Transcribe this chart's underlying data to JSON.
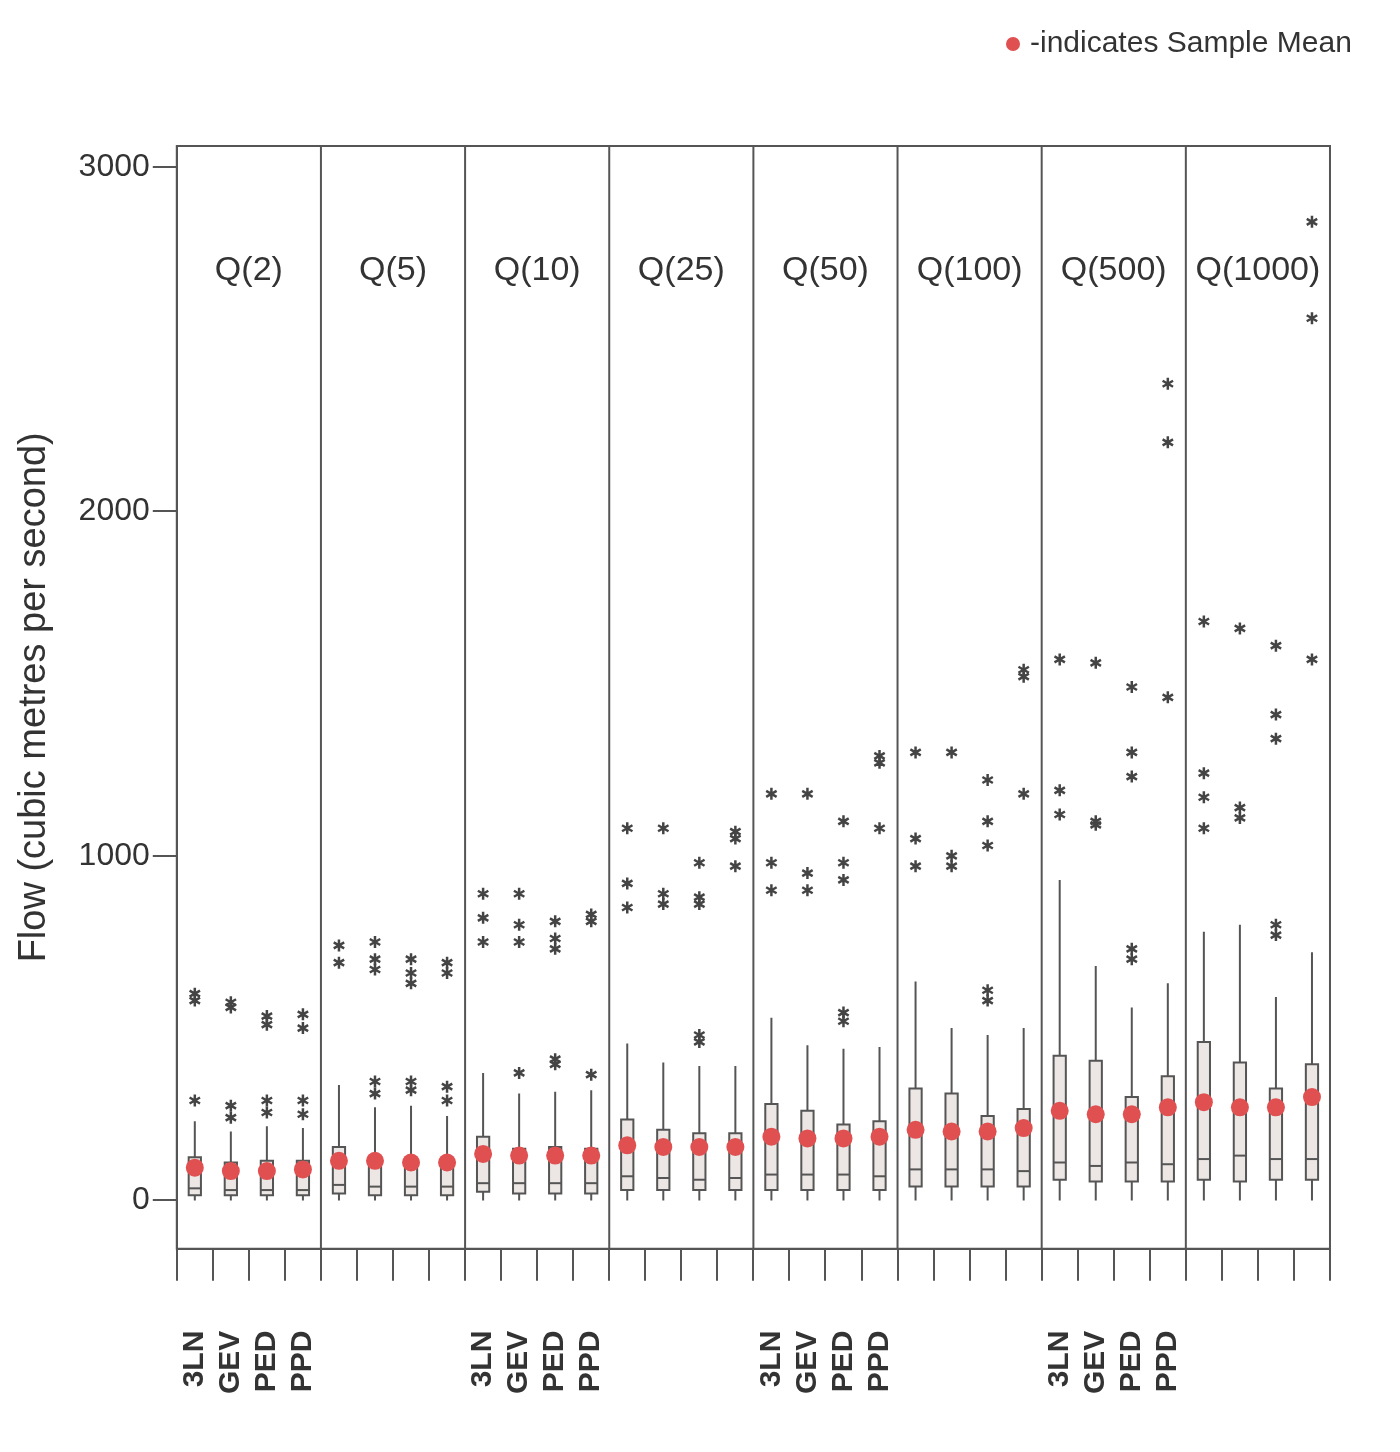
{
  "chart_data": {
    "type": "box",
    "ylabel": "Flow (cubic metres per second)",
    "categories": [
      "3LN",
      "GEV",
      "PED",
      "PPD",
      null,
      null,
      null,
      null,
      "3LN",
      "GEV",
      "PED",
      "PPD",
      null,
      null,
      null,
      null,
      "3LN",
      "GEV",
      "PED",
      "PPD",
      null,
      null,
      null,
      null,
      "3LN",
      "GEV",
      "PED",
      "PPD",
      null,
      null,
      null,
      null
    ],
    "ylim": [
      -140,
      3060
    ],
    "yticks": [
      0,
      1000,
      2000,
      3000
    ],
    "grid": false,
    "annotations": [
      "-indicates Sample Mean",
      "Q(2)",
      "Q(5)",
      "Q(10)",
      "Q(25)",
      "Q(50)",
      "Q(100)",
      "Q(500)",
      "Q(1000)"
    ],
    "series": [
      {
        "color": "#ece6e4",
        "boxes": [
          {
            "low": 0,
            "q1": 15,
            "median": 35,
            "q3": 125,
            "high": 230,
            "mean": 95,
            "outliers": [
              290,
              580,
              600
            ]
          },
          {
            "low": 0,
            "q1": 15,
            "median": 30,
            "q3": 110,
            "high": 200,
            "mean": 85,
            "outliers": [
              240,
              275,
              560,
              575
            ]
          },
          {
            "low": 0,
            "q1": 15,
            "median": 30,
            "q3": 115,
            "high": 215,
            "mean": 85,
            "outliers": [
              255,
              290,
              510,
              535
            ]
          },
          {
            "low": 0,
            "q1": 15,
            "median": 30,
            "q3": 115,
            "high": 210,
            "mean": 90,
            "outliers": [
              250,
              290,
              500,
              540
            ]
          },
          {
            "low": 0,
            "q1": 20,
            "median": 45,
            "q3": 155,
            "high": 335,
            "mean": 115,
            "outliers": [
              690,
              740
            ]
          },
          {
            "low": 0,
            "q1": 15,
            "median": 40,
            "q3": 120,
            "high": 270,
            "mean": 115,
            "outliers": [
              310,
              345,
              670,
              700,
              750
            ]
          },
          {
            "low": 0,
            "q1": 15,
            "median": 40,
            "q3": 120,
            "high": 275,
            "mean": 110,
            "outliers": [
              320,
              345,
              630,
              660,
              700
            ]
          },
          {
            "low": 0,
            "q1": 15,
            "median": 40,
            "q3": 115,
            "high": 245,
            "mean": 110,
            "outliers": [
              290,
              330,
              660,
              690
            ]
          },
          {
            "low": 0,
            "q1": 25,
            "median": 50,
            "q3": 185,
            "high": 370,
            "mean": 135,
            "outliers": [
              750,
              820,
              890
            ]
          },
          {
            "low": 0,
            "q1": 20,
            "median": 50,
            "q3": 150,
            "high": 310,
            "mean": 130,
            "outliers": [
              370,
              750,
              800,
              890
            ]
          },
          {
            "low": 0,
            "q1": 20,
            "median": 50,
            "q3": 155,
            "high": 315,
            "mean": 130,
            "outliers": [
              395,
              410,
              730,
              760,
              810
            ]
          },
          {
            "low": 0,
            "q1": 20,
            "median": 50,
            "q3": 150,
            "high": 320,
            "mean": 130,
            "outliers": [
              365,
              810,
              830
            ]
          },
          {
            "low": 0,
            "q1": 30,
            "median": 70,
            "q3": 235,
            "high": 455,
            "mean": 160,
            "outliers": [
              850,
              920,
              1080
            ]
          },
          {
            "low": 0,
            "q1": 30,
            "median": 65,
            "q3": 205,
            "high": 400,
            "mean": 155,
            "outliers": [
              860,
              890,
              1080
            ]
          },
          {
            "low": 0,
            "q1": 30,
            "median": 60,
            "q3": 195,
            "high": 390,
            "mean": 155,
            "outliers": [
              460,
              480,
              860,
              880,
              980
            ]
          },
          {
            "low": 0,
            "q1": 30,
            "median": 65,
            "q3": 195,
            "high": 390,
            "mean": 155,
            "outliers": [
              970,
              1050,
              1070
            ]
          },
          {
            "low": 0,
            "q1": 30,
            "median": 75,
            "q3": 280,
            "high": 530,
            "mean": 185,
            "outliers": [
              900,
              980,
              1180
            ]
          },
          {
            "low": 0,
            "q1": 30,
            "median": 75,
            "q3": 260,
            "high": 450,
            "mean": 180,
            "outliers": [
              900,
              950,
              1180
            ]
          },
          {
            "low": 0,
            "q1": 30,
            "median": 75,
            "q3": 220,
            "high": 440,
            "mean": 180,
            "outliers": [
              520,
              545,
              930,
              980,
              1100
            ]
          },
          {
            "low": 0,
            "q1": 30,
            "median": 70,
            "q3": 230,
            "high": 445,
            "mean": 185,
            "outliers": [
              1080,
              1270,
              1290
            ]
          },
          {
            "low": 0,
            "q1": 40,
            "median": 90,
            "q3": 325,
            "high": 635,
            "mean": 205,
            "outliers": [
              970,
              1050,
              1300
            ]
          },
          {
            "low": 0,
            "q1": 40,
            "median": 90,
            "q3": 310,
            "high": 500,
            "mean": 200,
            "outliers": [
              970,
              1000,
              1300
            ]
          },
          {
            "low": 0,
            "q1": 40,
            "median": 90,
            "q3": 245,
            "high": 480,
            "mean": 200,
            "outliers": [
              580,
              610,
              1030,
              1100,
              1220
            ]
          },
          {
            "low": 0,
            "q1": 40,
            "median": 85,
            "q3": 265,
            "high": 500,
            "mean": 210,
            "outliers": [
              1180,
              1520,
              1540
            ]
          },
          {
            "low": 0,
            "q1": 60,
            "median": 110,
            "q3": 420,
            "high": 930,
            "mean": 260,
            "outliers": [
              1120,
              1190,
              1570
            ]
          },
          {
            "low": 0,
            "q1": 55,
            "median": 100,
            "q3": 405,
            "high": 680,
            "mean": 250,
            "outliers": [
              1090,
              1100,
              1560
            ]
          },
          {
            "low": 0,
            "q1": 55,
            "median": 110,
            "q3": 300,
            "high": 560,
            "mean": 250,
            "outliers": [
              700,
              730,
              1230,
              1300,
              1490
            ]
          },
          {
            "low": 0,
            "q1": 55,
            "median": 105,
            "q3": 360,
            "high": 630,
            "mean": 270,
            "outliers": [
              1460,
              2200,
              2370
            ]
          },
          {
            "low": 0,
            "q1": 60,
            "median": 120,
            "q3": 460,
            "high": 780,
            "mean": 285,
            "outliers": [
              1080,
              1170,
              1240,
              1680
            ]
          },
          {
            "low": 0,
            "q1": 55,
            "median": 130,
            "q3": 400,
            "high": 800,
            "mean": 270,
            "outliers": [
              1110,
              1140,
              1660
            ]
          },
          {
            "low": 0,
            "q1": 60,
            "median": 120,
            "q3": 325,
            "high": 590,
            "mean": 270,
            "outliers": [
              770,
              800,
              1340,
              1410,
              1610
            ]
          },
          {
            "low": 0,
            "q1": 60,
            "median": 120,
            "q3": 395,
            "high": 720,
            "mean": 300,
            "outliers": [
              1570,
              2560,
              2840
            ]
          }
        ]
      }
    ]
  }
}
